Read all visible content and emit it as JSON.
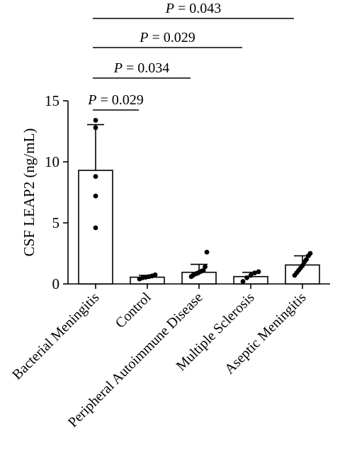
{
  "chart_data": {
    "type": "bar",
    "ylabel": "CSF LEAP2 (ng/mL)",
    "ylim": [
      0,
      15
    ],
    "yticks": [
      "0",
      "5",
      "10",
      "15"
    ],
    "categories": [
      "Bacterial Meningitis",
      "Control",
      "Peripheral Autoimmune Disease",
      "Multiple Sclerosis",
      "Aseptic Meningitis"
    ],
    "values": [
      9.3,
      0.55,
      0.95,
      0.6,
      1.55
    ],
    "error_upper": [
      13.05,
      0.7,
      1.6,
      0.95,
      2.3
    ],
    "points": [
      [
        13.4,
        12.8,
        8.8,
        7.2,
        4.6
      ],
      [
        0.4,
        0.5,
        0.55,
        0.6,
        0.65,
        0.75
      ],
      [
        0.6,
        0.7,
        0.8,
        0.85,
        0.9,
        1.0,
        1.05,
        1.1,
        1.4,
        2.6
      ],
      [
        0.2,
        0.5,
        0.7,
        0.9,
        1.0
      ],
      [
        0.7,
        0.9,
        1.1,
        1.3,
        1.5,
        1.8,
        2.0,
        2.3,
        2.5
      ]
    ],
    "comparisons": [
      {
        "from": 0,
        "to": 1,
        "label": "P = 0.029"
      },
      {
        "from": 0,
        "to": 2,
        "label": "P = 0.034"
      },
      {
        "from": 0,
        "to": 3,
        "label": "P = 0.029"
      },
      {
        "from": 0,
        "to": 4,
        "label": "P = 0.043"
      }
    ],
    "grid": false
  }
}
